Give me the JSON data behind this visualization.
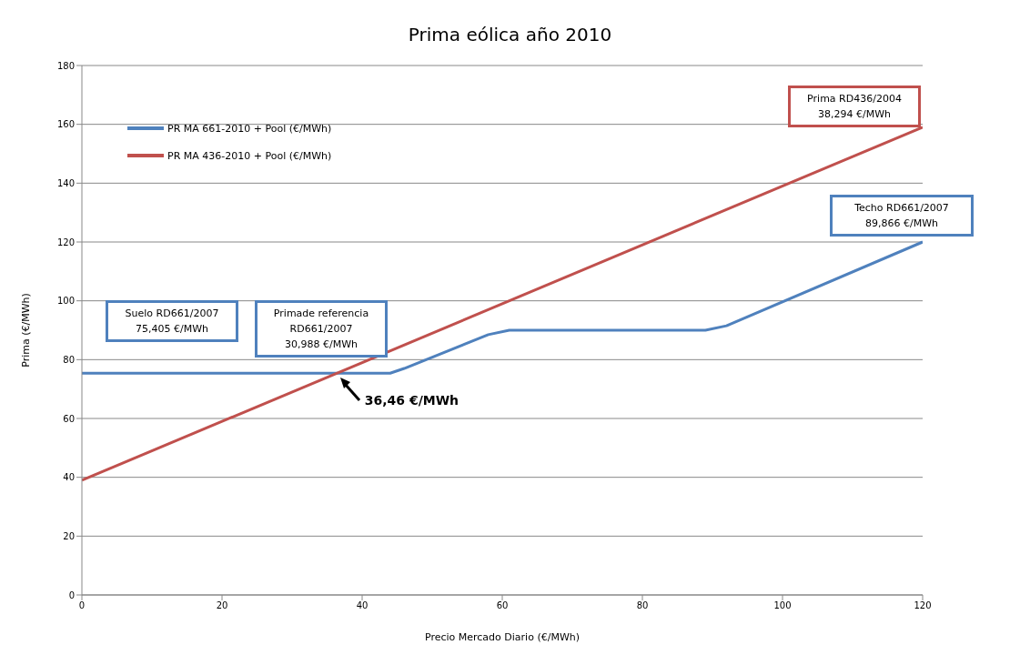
{
  "chart_data": {
    "type": "line",
    "title": "Prima eólica año 2010",
    "xlabel": "Precio Mercado Diario  (€/MWh)",
    "ylabel": "Prima (€/MWh)",
    "xlim": [
      0,
      120
    ],
    "xticks": [
      0,
      20,
      40,
      60,
      80,
      100,
      120
    ],
    "ylim": [
      0,
      180
    ],
    "yticks": [
      0,
      20,
      40,
      60,
      80,
      100,
      120,
      140,
      160,
      180
    ],
    "grid": "y",
    "legend": "top left",
    "marker": "none",
    "line_style": "solid",
    "series": [
      {
        "name": "PR MA 661-2010 + Pool (€/MWh)",
        "color": "#4f81bd",
        "x": [
          0,
          44,
          46,
          58,
          61,
          89,
          92,
          120
        ],
        "values": [
          75.4,
          75.4,
          77,
          88.5,
          90,
          90,
          91.5,
          120
        ]
      },
      {
        "name": "PR MA 436-2010 + Pool (€/MWh)",
        "color": "#c0504d",
        "x": [
          0,
          120
        ],
        "values": [
          39,
          159
        ]
      }
    ],
    "annotations": [
      "Suelo RD661/2007\n75,405 €/MWh",
      "Primade referencia\nRD661/2007\n30,988 €/MWh",
      "Prima RD436/2004\n38,294 €/MWh",
      "Techo RD661/2007\n89,866 €/MWh",
      {
        "text": "36,46 €/MWh",
        "x": 36.46,
        "y": 75.4
      }
    ]
  }
}
